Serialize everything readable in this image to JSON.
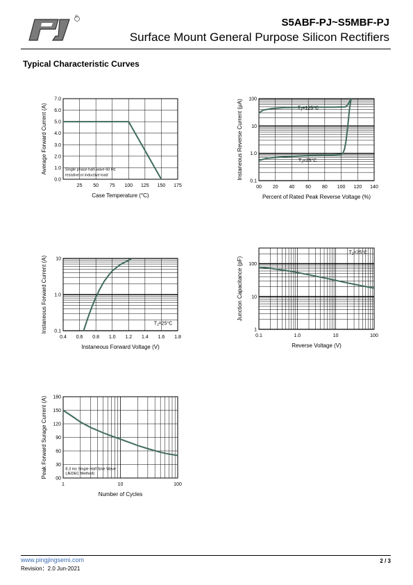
{
  "header": {
    "part_number": "S5ABF-PJ~S5MBF-PJ",
    "subtitle": "Surface Mount General Purpose Silicon Rectifiers",
    "registered_mark": "®",
    "logo_icon": "pj-logo-icon"
  },
  "section_title": "Typical Characteristic Curves",
  "footer": {
    "url": "www.pingjingsemi.com",
    "revision": "Revision：2.0  Jun-2021",
    "page": "2 / 3"
  },
  "colors": {
    "curve": "#3f6b5e",
    "grid": "#000000",
    "link": "#3c6db5"
  },
  "chart_data": [
    {
      "id": "fig1",
      "type": "line",
      "xlabel": "Case Temperature (°C)",
      "ylabel": "Average Forward Current (A)",
      "xscale": "linear",
      "yscale": "linear",
      "xlim": [
        0,
        175
      ],
      "ylim": [
        0,
        7
      ],
      "xticks": [
        25,
        50,
        75,
        100,
        125,
        150,
        175
      ],
      "xtick_labels": [
        "25",
        "50",
        "75",
        "100",
        "125",
        "150",
        "175"
      ],
      "yticks": [
        0,
        1,
        2,
        3,
        4,
        5,
        6,
        7
      ],
      "ytick_labels": [
        "0.0",
        "1.0",
        "2.0",
        "3.0",
        "4.0",
        "5.0",
        "6.0",
        "7.0"
      ],
      "grid_x": [
        25,
        50,
        75,
        100,
        125,
        150,
        175
      ],
      "grid_y": [
        1,
        2,
        3,
        4,
        5,
        6,
        7
      ],
      "series": [
        {
          "x": [
            0,
            100,
            150
          ],
          "y": [
            5,
            5,
            0
          ]
        }
      ],
      "annotations": [
        {
          "text": "Single phase half-wave 60 Hz",
          "x": 3,
          "y": 0.75
        },
        {
          "text": "resistive or inductive load",
          "x": 3,
          "y": 0.28
        }
      ]
    },
    {
      "id": "fig2",
      "type": "line",
      "xlabel": "Percent of Rated  Peak Reverse Voltage (%)",
      "ylabel": "Instaneous Reverse Current (μA)",
      "xscale": "linear",
      "yscale": "log",
      "xlim": [
        0,
        140
      ],
      "ylim": [
        0.1,
        100
      ],
      "xticks": [
        0,
        20,
        40,
        60,
        80,
        100,
        120,
        140
      ],
      "xtick_labels": [
        "00",
        "20",
        "40",
        "60",
        "80",
        "100",
        "120",
        "140"
      ],
      "yticks": [
        0.1,
        1,
        10,
        100
      ],
      "ytick_labels": [
        "0.1",
        "1.0",
        "10",
        "100"
      ],
      "grid_x": [
        20,
        40,
        60,
        80,
        100,
        120,
        140
      ],
      "series": [
        {
          "label": "TJ=125°C",
          "x": [
            0,
            5,
            15,
            30,
            50,
            70,
            90,
            105,
            108,
            112
          ],
          "y": [
            30,
            38,
            43,
            47,
            48,
            49,
            49,
            50,
            60,
            100
          ]
        },
        {
          "label": "TJ=25°C",
          "x": [
            0,
            10,
            30,
            50,
            70,
            90,
            100,
            102,
            104,
            106,
            108,
            110,
            112
          ],
          "y": [
            0.55,
            0.66,
            0.75,
            0.8,
            0.84,
            0.87,
            0.9,
            1.0,
            1.4,
            3,
            10,
            40,
            100
          ]
        }
      ],
      "annotations": [
        {
          "text": "T",
          "sub": "J",
          "rest": "=125°C",
          "x": 47,
          "y": 40
        },
        {
          "text": "T",
          "sub": "J",
          "rest": "=25°C",
          "x": 48,
          "y": 0.48
        }
      ]
    },
    {
      "id": "fig3",
      "type": "line",
      "xlabel": "Instaneous Forward Voltage (V)",
      "ylabel": "Instaneous Forward Current  (A)",
      "xscale": "linear",
      "yscale": "log",
      "xlim": [
        0.4,
        1.8
      ],
      "ylim": [
        0.1,
        10
      ],
      "xticks": [
        0.4,
        0.6,
        0.8,
        1.0,
        1.2,
        1.4,
        1.6,
        1.8
      ],
      "xtick_labels": [
        "0.4",
        "0.6",
        "0.8",
        "1.0",
        "1.2",
        "1.4",
        "1.6",
        "1.8"
      ],
      "yticks": [
        0.1,
        1,
        10
      ],
      "ytick_labels": [
        "0.1",
        "1.0",
        "10"
      ],
      "grid_x": [
        0.6,
        0.8,
        1.0,
        1.2,
        1.4,
        1.6,
        1.8
      ],
      "series": [
        {
          "label": "TJ=25°C",
          "x": [
            0.65,
            0.7,
            0.75,
            0.8,
            0.85,
            0.9,
            0.95,
            1.0,
            1.05,
            1.1,
            1.15,
            1.2,
            1.23
          ],
          "y": [
            0.1,
            0.22,
            0.45,
            0.85,
            1.45,
            2.3,
            3.3,
            4.5,
            5.6,
            6.8,
            7.8,
            8.8,
            9.5
          ]
        }
      ],
      "annotations": [
        {
          "text": "T",
          "sub": "J",
          "rest": "=25°C",
          "x": 1.51,
          "y": 0.145
        }
      ]
    },
    {
      "id": "fig4",
      "type": "line",
      "xlabel": "Reverse  Voltage (V)",
      "ylabel": "Junction Capacitance (pF)",
      "xscale": "log",
      "yscale": "log",
      "xlim": [
        0.1,
        100
      ],
      "ylim": [
        1,
        300
      ],
      "xticks": [
        0.1,
        1,
        10,
        100
      ],
      "xtick_labels": [
        "0.1",
        "1.0",
        "10",
        "100"
      ],
      "yticks": [
        1,
        10,
        100
      ],
      "ytick_labels": [
        "1",
        "10",
        "100"
      ],
      "series": [
        {
          "label": "TJ=25°C",
          "x": [
            0.1,
            0.2,
            0.5,
            1,
            2,
            5,
            10,
            20,
            50,
            100
          ],
          "y": [
            78,
            72,
            62,
            54,
            46,
            37,
            31,
            26,
            21,
            18
          ]
        }
      ],
      "annotations": [
        {
          "text": "T",
          "sub": "J",
          "rest": "=25°C",
          "x": 22,
          "y": 200
        }
      ]
    },
    {
      "id": "fig5",
      "type": "line",
      "xlabel": "Number of Cycles",
      "ylabel": "Peak Forward Surage Current (A)",
      "xscale": "log",
      "yscale": "linear",
      "xlim": [
        1,
        100
      ],
      "ylim": [
        0,
        180
      ],
      "xticks": [
        1,
        10,
        100
      ],
      "xtick_labels": [
        "1",
        "10",
        "100"
      ],
      "yticks": [
        0,
        30,
        60,
        90,
        120,
        150,
        180
      ],
      "ytick_labels": [
        "00",
        "30",
        "60",
        "90",
        "120",
        "150",
        "180"
      ],
      "grid_y": [
        30,
        60,
        90,
        120,
        150,
        180
      ],
      "series": [
        {
          "x": [
            1,
            1.5,
            2,
            3,
            5,
            7,
            10,
            20,
            30,
            50,
            70,
            100
          ],
          "y": [
            150,
            135,
            124,
            112,
            100,
            93,
            86,
            72,
            65,
            57,
            53,
            50
          ]
        }
      ],
      "annotations": [
        {
          "text": "8.3 ms Single Half Sine Wave",
          "x": 1.1,
          "y": 18
        },
        {
          "text": "(JEDEC Method)",
          "x": 1.1,
          "y": 8
        }
      ]
    }
  ]
}
